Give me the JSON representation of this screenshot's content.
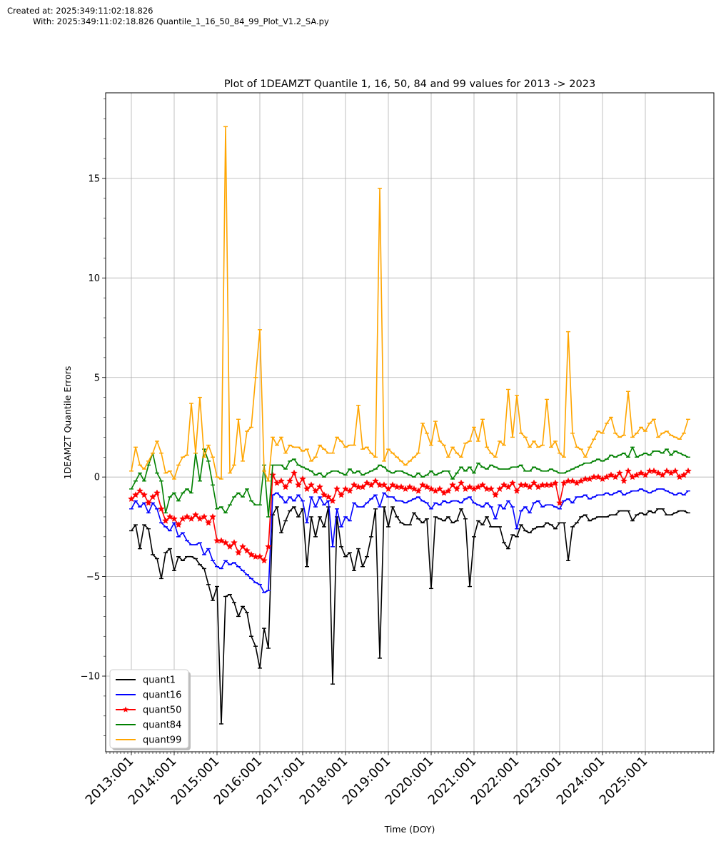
{
  "header": {
    "created": "Created at: 2025:349:11:02:18.826",
    "with": "With: 2025:349:11:02:18.826 Quantile_1_16_50_84_99_Plot_V1.2_SA.py"
  },
  "chart_data": {
    "type": "line",
    "title": "Plot of 1DEAMZT Quantile 1, 16, 50, 84 and 99 values for 2013 ->  2023",
    "xlabel": "Time (DOY)",
    "ylabel": "1DEAMZT Quantile Errors",
    "xlim": [
      2012.4,
      2026.6
    ],
    "ylim": [
      -13.8,
      19.3
    ],
    "x_ticks": [
      "2013:001",
      "2014:001",
      "2015:001",
      "2016:001",
      "2017:001",
      "2018:001",
      "2019:001",
      "2020:001",
      "2021:001",
      "2022:001",
      "2023:001",
      "2024:001",
      "2025:001"
    ],
    "y_ticks": [
      -10,
      -5,
      0,
      5,
      10,
      15
    ],
    "grid": true,
    "legend_position": "lower-left",
    "x": [
      2013.0,
      2013.1,
      2013.2,
      2013.3,
      2013.4,
      2013.5,
      2013.6,
      2013.7,
      2013.8,
      2013.9,
      2014.0,
      2014.1,
      2014.2,
      2014.3,
      2014.4,
      2014.5,
      2014.6,
      2014.7,
      2014.8,
      2014.9,
      2015.0,
      2015.1,
      2015.2,
      2015.3,
      2015.4,
      2015.5,
      2015.6,
      2015.7,
      2015.8,
      2015.9,
      2016.0,
      2016.1,
      2016.2,
      2016.3,
      2016.4,
      2016.5,
      2016.6,
      2016.7,
      2016.8,
      2016.9,
      2017.0,
      2017.1,
      2017.2,
      2017.3,
      2017.4,
      2017.5,
      2017.6,
      2017.7,
      2017.8,
      2017.9,
      2018.0,
      2018.1,
      2018.2,
      2018.3,
      2018.4,
      2018.5,
      2018.6,
      2018.7,
      2018.8,
      2018.9,
      2019.0,
      2019.1,
      2019.2,
      2019.3,
      2019.4,
      2019.5,
      2019.6,
      2019.7,
      2019.8,
      2019.9,
      2020.0,
      2020.1,
      2020.2,
      2020.3,
      2020.4,
      2020.5,
      2020.6,
      2020.7,
      2020.8,
      2020.9,
      2021.0,
      2021.1,
      2021.2,
      2021.3,
      2021.4,
      2021.5,
      2021.6,
      2021.7,
      2021.8,
      2021.9,
      2022.0,
      2022.1,
      2022.2,
      2022.3,
      2022.4,
      2022.5,
      2022.6,
      2022.7,
      2022.8,
      2022.9,
      2023.0,
      2023.1,
      2023.2,
      2023.3,
      2023.4,
      2023.5,
      2023.6,
      2023.7,
      2023.8,
      2023.9,
      2024.0,
      2024.1,
      2024.2,
      2024.3,
      2024.4,
      2024.5,
      2024.6,
      2024.7,
      2024.8,
      2024.9,
      2025.0,
      2025.1,
      2025.2,
      2025.3,
      2025.4,
      2025.5,
      2025.6,
      2025.7,
      2025.8,
      2025.9,
      2026.0
    ],
    "series": [
      {
        "name": "quant1",
        "color": "#000000",
        "marker": "tick",
        "values": [
          -2.7,
          -2.4,
          -3.6,
          -2.4,
          -2.6,
          -3.9,
          -4.1,
          -5.1,
          -3.8,
          -3.6,
          -4.7,
          -4.0,
          -4.2,
          -4.0,
          -4.0,
          -4.1,
          -4.4,
          -4.6,
          -5.4,
          -6.2,
          -5.5,
          -12.4,
          -6.0,
          -5.9,
          -6.3,
          -7.0,
          -6.5,
          -6.8,
          -8.0,
          -8.5,
          -9.6,
          -7.6,
          -8.6,
          -1.9,
          -1.5,
          -2.8,
          -2.2,
          -1.7,
          -1.5,
          -2.0,
          -1.6,
          -4.5,
          -2.0,
          -3.0,
          -2.0,
          -2.5,
          -1.5,
          -10.4,
          -2.0,
          -3.5,
          -4.0,
          -3.8,
          -4.7,
          -3.6,
          -4.5,
          -4.0,
          -3.0,
          -1.6,
          -9.1,
          -1.5,
          -2.5,
          -1.5,
          -2.0,
          -2.3,
          -2.4,
          -2.4,
          -1.8,
          -2.1,
          -2.3,
          -2.1,
          -5.6,
          -2.0,
          -2.1,
          -2.2,
          -2.0,
          -2.3,
          -2.2,
          -1.6,
          -2.1,
          -5.5,
          -3.0,
          -2.2,
          -2.4,
          -2.0,
          -2.5,
          -2.5,
          -2.5,
          -3.3,
          -3.6,
          -2.9,
          -3.0,
          -2.4,
          -2.7,
          -2.8,
          -2.6,
          -2.5,
          -2.5,
          -2.3,
          -2.4,
          -2.6,
          -2.3,
          -2.3,
          -4.2,
          -2.5,
          -2.3,
          -2.0,
          -1.9,
          -2.2,
          -2.1,
          -2.0,
          -2.0,
          -2.0,
          -1.9,
          -1.9,
          -1.7,
          -1.7,
          -1.7,
          -2.2,
          -1.9,
          -1.8,
          -1.9,
          -1.7,
          -1.8,
          -1.6,
          -1.6,
          -1.9,
          -1.9,
          -1.8,
          -1.7,
          -1.7,
          -1.8
        ]
      },
      {
        "name": "quant16",
        "color": "#0000ff",
        "marker": "tick",
        "values": [
          -1.6,
          -1.2,
          -1.5,
          -1.3,
          -1.8,
          -1.3,
          -1.6,
          -2.3,
          -2.5,
          -2.7,
          -2.3,
          -3.0,
          -2.8,
          -3.2,
          -3.4,
          -3.4,
          -3.3,
          -3.9,
          -3.6,
          -4.2,
          -4.5,
          -4.6,
          -4.2,
          -4.4,
          -4.3,
          -4.5,
          -4.7,
          -4.9,
          -5.1,
          -5.3,
          -5.4,
          -5.8,
          -5.7,
          -0.9,
          -0.8,
          -1.0,
          -1.3,
          -1.0,
          -1.2,
          -0.9,
          -1.2,
          -2.3,
          -1.0,
          -1.5,
          -1.0,
          -1.4,
          -1.2,
          -3.5,
          -1.6,
          -2.5,
          -2.0,
          -2.2,
          -1.3,
          -1.5,
          -1.5,
          -1.3,
          -1.1,
          -0.9,
          -1.5,
          -0.8,
          -1.0,
          -1.0,
          -1.2,
          -1.2,
          -1.3,
          -1.2,
          -1.1,
          -1.0,
          -1.2,
          -1.3,
          -1.6,
          -1.3,
          -1.4,
          -1.2,
          -1.3,
          -1.2,
          -1.2,
          -1.3,
          -1.1,
          -1.0,
          -1.3,
          -1.4,
          -1.5,
          -1.3,
          -1.5,
          -2.1,
          -1.4,
          -1.6,
          -1.2,
          -1.5,
          -2.6,
          -1.7,
          -1.5,
          -1.8,
          -1.3,
          -1.2,
          -1.5,
          -1.4,
          -1.4,
          -1.5,
          -1.6,
          -1.2,
          -1.1,
          -1.3,
          -1.0,
          -1.0,
          -0.9,
          -1.1,
          -1.0,
          -0.9,
          -0.9,
          -0.8,
          -0.9,
          -0.8,
          -0.7,
          -0.9,
          -0.8,
          -0.7,
          -0.7,
          -0.6,
          -0.7,
          -0.8,
          -0.7,
          -0.6,
          -0.6,
          -0.7,
          -0.8,
          -0.9,
          -0.8,
          -0.9,
          -0.7
        ]
      },
      {
        "name": "quant50",
        "color": "#ff0000",
        "marker": "star",
        "values": [
          -1.1,
          -0.9,
          -0.7,
          -0.9,
          -1.3,
          -1.0,
          -0.8,
          -1.6,
          -2.2,
          -2.0,
          -2.1,
          -2.4,
          -2.1,
          -2.0,
          -2.1,
          -1.9,
          -2.1,
          -2.0,
          -2.3,
          -2.0,
          -3.2,
          -3.2,
          -3.3,
          -3.5,
          -3.3,
          -3.8,
          -3.5,
          -3.7,
          -3.9,
          -4.0,
          -4.0,
          -4.2,
          -3.5,
          0.1,
          -0.3,
          -0.2,
          -0.5,
          -0.2,
          0.2,
          -0.4,
          -0.1,
          -0.6,
          -0.4,
          -0.7,
          -0.5,
          -0.9,
          -1.0,
          -1.2,
          -0.6,
          -0.9,
          -0.6,
          -0.7,
          -0.4,
          -0.5,
          -0.5,
          -0.3,
          -0.4,
          -0.2,
          -0.4,
          -0.4,
          -0.6,
          -0.4,
          -0.5,
          -0.5,
          -0.6,
          -0.5,
          -0.6,
          -0.7,
          -0.4,
          -0.5,
          -0.6,
          -0.7,
          -0.6,
          -0.8,
          -0.7,
          -0.4,
          -0.6,
          -0.3,
          -0.6,
          -0.5,
          -0.6,
          -0.5,
          -0.4,
          -0.6,
          -0.6,
          -0.9,
          -0.6,
          -0.4,
          -0.5,
          -0.3,
          -0.7,
          -0.4,
          -0.4,
          -0.5,
          -0.3,
          -0.5,
          -0.4,
          -0.4,
          -0.4,
          -0.3,
          -1.3,
          -0.3,
          -0.2,
          -0.2,
          -0.3,
          -0.2,
          -0.1,
          -0.1,
          0.0,
          0.0,
          -0.1,
          0.0,
          0.1,
          0.0,
          0.2,
          -0.2,
          0.3,
          0.0,
          0.1,
          0.2,
          0.1,
          0.3,
          0.3,
          0.2,
          0.1,
          0.3,
          0.2,
          0.3,
          0.0,
          0.1,
          0.3
        ]
      },
      {
        "name": "quant84",
        "color": "#008000",
        "marker": "tick",
        "values": [
          -0.6,
          -0.2,
          0.2,
          -0.2,
          0.6,
          1.2,
          0.2,
          -0.2,
          -1.8,
          -1.0,
          -0.8,
          -1.2,
          -0.8,
          -0.6,
          -0.8,
          1.2,
          -0.2,
          1.4,
          0.8,
          -0.4,
          -1.6,
          -1.5,
          -1.8,
          -1.4,
          -1.0,
          -0.8,
          -1.0,
          -0.6,
          -1.2,
          -1.4,
          -1.4,
          0.6,
          -2.0,
          0.6,
          0.6,
          0.6,
          0.4,
          0.8,
          0.9,
          0.6,
          0.5,
          0.4,
          0.3,
          0.1,
          0.2,
          0.0,
          0.2,
          0.3,
          0.3,
          0.2,
          0.1,
          0.4,
          0.2,
          0.3,
          0.1,
          0.2,
          0.3,
          0.4,
          0.6,
          0.5,
          0.3,
          0.2,
          0.3,
          0.3,
          0.2,
          0.1,
          0.0,
          0.2,
          0.0,
          0.1,
          0.3,
          0.1,
          0.2,
          0.3,
          0.3,
          -0.1,
          0.2,
          0.5,
          0.3,
          0.5,
          0.2,
          0.7,
          0.5,
          0.4,
          0.6,
          0.5,
          0.4,
          0.4,
          0.4,
          0.5,
          0.5,
          0.6,
          0.3,
          0.3,
          0.5,
          0.4,
          0.3,
          0.3,
          0.4,
          0.3,
          0.2,
          0.2,
          0.3,
          0.4,
          0.5,
          0.6,
          0.7,
          0.7,
          0.8,
          0.9,
          0.8,
          0.9,
          1.1,
          1.0,
          1.1,
          1.2,
          1.0,
          1.5,
          1.0,
          1.1,
          1.2,
          1.1,
          1.3,
          1.3,
          1.2,
          1.4,
          1.1,
          1.3,
          1.2,
          1.1,
          1.0
        ]
      },
      {
        "name": "quant99",
        "color": "#ffa500",
        "marker": "tick",
        "values": [
          0.3,
          1.5,
          0.6,
          0.4,
          0.8,
          1.2,
          1.8,
          1.2,
          0.2,
          0.3,
          -0.1,
          0.6,
          1.0,
          1.1,
          3.7,
          1.2,
          4.0,
          1.0,
          1.6,
          1.0,
          0.0,
          -0.1,
          17.6,
          0.2,
          0.6,
          2.9,
          0.8,
          2.3,
          2.5,
          5.0,
          7.4,
          0.3,
          -0.2,
          2.0,
          1.6,
          2.0,
          1.2,
          1.6,
          1.5,
          1.5,
          1.3,
          1.4,
          0.8,
          1.0,
          1.6,
          1.4,
          1.2,
          1.2,
          2.0,
          1.8,
          1.5,
          1.6,
          1.6,
          3.6,
          1.4,
          1.5,
          1.2,
          1.0,
          14.5,
          0.8,
          1.4,
          1.2,
          1.0,
          0.8,
          0.6,
          0.8,
          1.0,
          1.2,
          2.7,
          2.2,
          1.6,
          2.8,
          1.8,
          1.6,
          1.0,
          1.5,
          1.2,
          1.0,
          1.7,
          1.8,
          2.5,
          1.8,
          2.9,
          1.5,
          1.2,
          1.0,
          1.8,
          1.6,
          4.4,
          2.0,
          4.1,
          2.2,
          2.0,
          1.5,
          1.8,
          1.5,
          1.6,
          3.9,
          1.5,
          1.8,
          1.2,
          1.0,
          7.3,
          2.2,
          1.5,
          1.4,
          1.0,
          1.5,
          1.9,
          2.3,
          2.2,
          2.7,
          3.0,
          2.2,
          2.0,
          2.1,
          4.3,
          2.0,
          2.2,
          2.5,
          2.3,
          2.7,
          2.9,
          2.0,
          2.2,
          2.3,
          2.1,
          2.0,
          1.9,
          2.2,
          2.9
        ]
      }
    ]
  }
}
